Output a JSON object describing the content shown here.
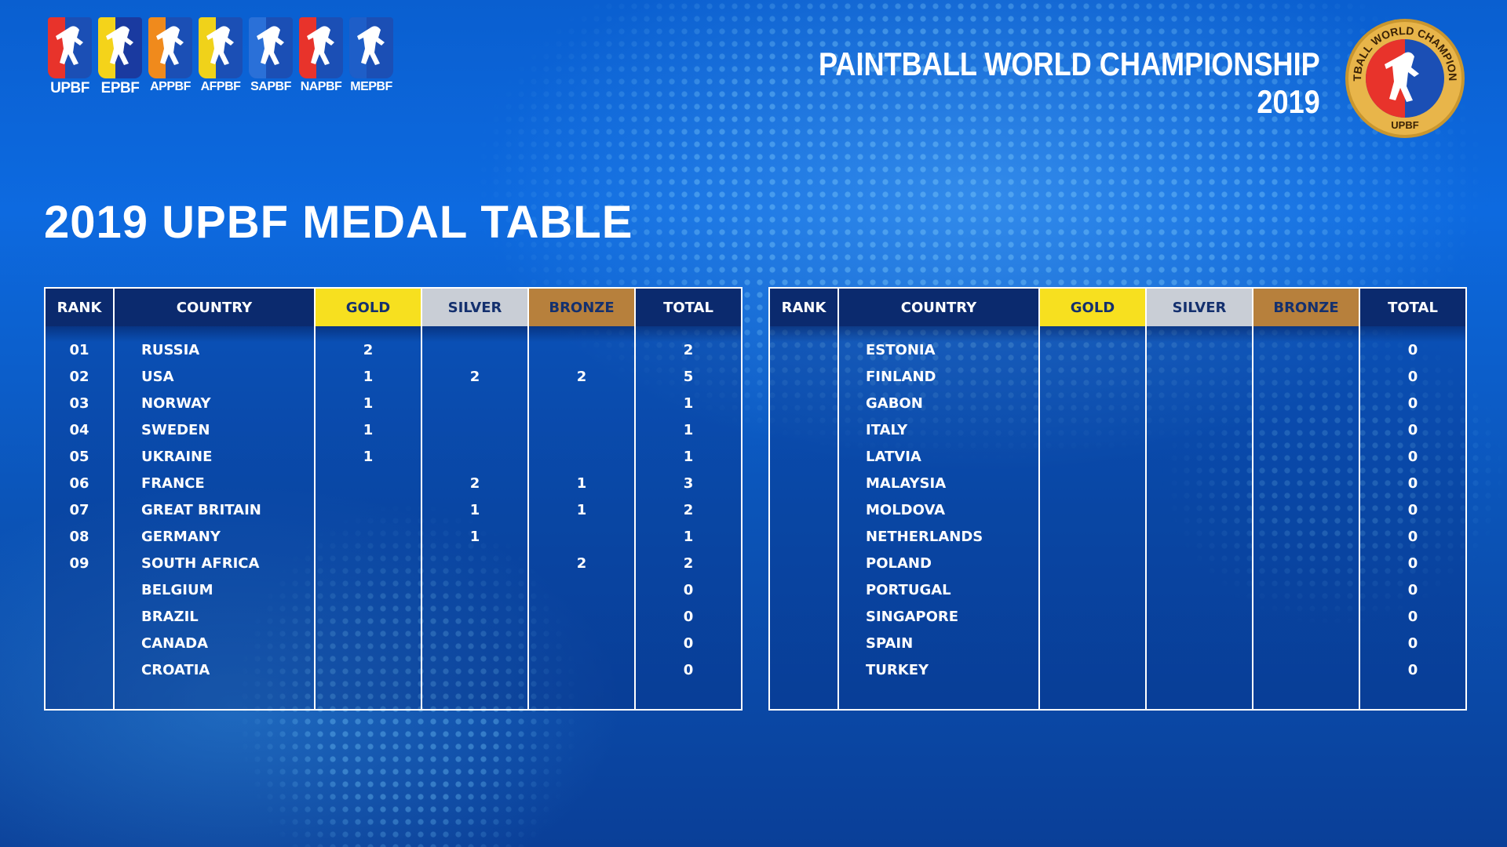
{
  "federations": [
    {
      "label": "UPBF",
      "color": "#1b4fb5",
      "accent": "#e8332b"
    },
    {
      "label": "EPBF",
      "color": "#1a3aa0",
      "accent": "#f4d31a"
    },
    {
      "label": "APPBF",
      "color": "#1b4fb5",
      "accent": "#f08a1c"
    },
    {
      "label": "AFPBF",
      "color": "#1b4fb5",
      "accent": "#f0d21a"
    },
    {
      "label": "SAPBF",
      "color": "#1b4fb5",
      "accent": "#2a70d8"
    },
    {
      "label": "NAPBF",
      "color": "#1b4fb5",
      "accent": "#e8332b"
    },
    {
      "label": "MEPBF",
      "color": "#1b4fb5",
      "accent": "#1e5ec8"
    }
  ],
  "header": {
    "championship_line1": "PAINTBALL WORLD CHAMPIONSHIP",
    "championship_line2": "2019",
    "logo_text_top": "PAINTBALL WORLD CHAMPIONSHIP",
    "logo_text_bottom": "UPBF"
  },
  "page_title": "2019 UPBF MEDAL TABLE",
  "columns": {
    "rank": "RANK",
    "country": "COUNTRY",
    "gold": "GOLD",
    "silver": "SILVER",
    "bronze": "BRONZE",
    "total": "TOTAL"
  },
  "colors": {
    "gold": "#f7e01f",
    "silver": "#c9ced6",
    "bronze": "#b7803c",
    "header_dark": "#0b2a6e"
  },
  "left_table": [
    {
      "rank": "01",
      "country": "RUSSIA",
      "gold": "2",
      "silver": "",
      "bronze": "",
      "total": "2"
    },
    {
      "rank": "02",
      "country": "USA",
      "gold": "1",
      "silver": "2",
      "bronze": "2",
      "total": "5"
    },
    {
      "rank": "03",
      "country": "NORWAY",
      "gold": "1",
      "silver": "",
      "bronze": "",
      "total": "1"
    },
    {
      "rank": "04",
      "country": "SWEDEN",
      "gold": "1",
      "silver": "",
      "bronze": "",
      "total": "1"
    },
    {
      "rank": "05",
      "country": "UKRAINE",
      "gold": "1",
      "silver": "",
      "bronze": "",
      "total": "1"
    },
    {
      "rank": "06",
      "country": "FRANCE",
      "gold": "",
      "silver": "2",
      "bronze": "1",
      "total": "3"
    },
    {
      "rank": "07",
      "country": "GREAT BRITAIN",
      "gold": "",
      "silver": "1",
      "bronze": "1",
      "total": "2"
    },
    {
      "rank": "08",
      "country": "GERMANY",
      "gold": "",
      "silver": "1",
      "bronze": "",
      "total": "1"
    },
    {
      "rank": "09",
      "country": "SOUTH AFRICA",
      "gold": "",
      "silver": "",
      "bronze": "2",
      "total": "2"
    },
    {
      "rank": "",
      "country": "BELGIUM",
      "gold": "",
      "silver": "",
      "bronze": "",
      "total": "0"
    },
    {
      "rank": "",
      "country": "BRAZIL",
      "gold": "",
      "silver": "",
      "bronze": "",
      "total": "0"
    },
    {
      "rank": "",
      "country": "CANADA",
      "gold": "",
      "silver": "",
      "bronze": "",
      "total": "0"
    },
    {
      "rank": "",
      "country": "CROATIA",
      "gold": "",
      "silver": "",
      "bronze": "",
      "total": "0"
    }
  ],
  "right_table": [
    {
      "rank": "",
      "country": "ESTONIA",
      "gold": "",
      "silver": "",
      "bronze": "",
      "total": "0"
    },
    {
      "rank": "",
      "country": "FINLAND",
      "gold": "",
      "silver": "",
      "bronze": "",
      "total": "0"
    },
    {
      "rank": "",
      "country": "GABON",
      "gold": "",
      "silver": "",
      "bronze": "",
      "total": "0"
    },
    {
      "rank": "",
      "country": "ITALY",
      "gold": "",
      "silver": "",
      "bronze": "",
      "total": "0"
    },
    {
      "rank": "",
      "country": "LATVIA",
      "gold": "",
      "silver": "",
      "bronze": "",
      "total": "0"
    },
    {
      "rank": "",
      "country": "MALAYSIA",
      "gold": "",
      "silver": "",
      "bronze": "",
      "total": "0"
    },
    {
      "rank": "",
      "country": "MOLDOVA",
      "gold": "",
      "silver": "",
      "bronze": "",
      "total": "0"
    },
    {
      "rank": "",
      "country": "NETHERLANDS",
      "gold": "",
      "silver": "",
      "bronze": "",
      "total": "0"
    },
    {
      "rank": "",
      "country": "POLAND",
      "gold": "",
      "silver": "",
      "bronze": "",
      "total": "0"
    },
    {
      "rank": "",
      "country": "PORTUGAL",
      "gold": "",
      "silver": "",
      "bronze": "",
      "total": "0"
    },
    {
      "rank": "",
      "country": "SINGAPORE",
      "gold": "",
      "silver": "",
      "bronze": "",
      "total": "0"
    },
    {
      "rank": "",
      "country": "SPAIN",
      "gold": "",
      "silver": "",
      "bronze": "",
      "total": "0"
    },
    {
      "rank": "",
      "country": "TURKEY",
      "gold": "",
      "silver": "",
      "bronze": "",
      "total": "0"
    }
  ]
}
